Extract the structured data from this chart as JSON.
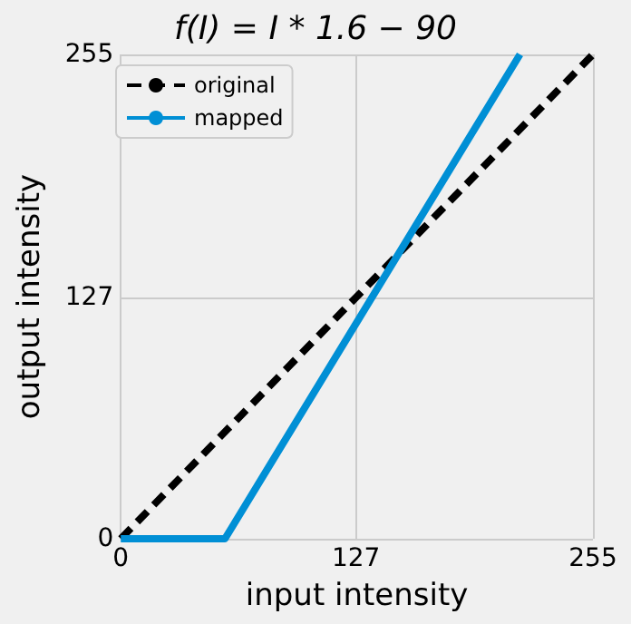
{
  "chart_data": {
    "type": "line",
    "title": "f(I) = I * 1.6 − 90",
    "xlabel": "input intensity",
    "ylabel": "output intensity",
    "xlim": [
      0,
      255
    ],
    "ylim": [
      0,
      255
    ],
    "xticks": [
      0,
      127,
      255
    ],
    "yticks": [
      0,
      127,
      255
    ],
    "grid": true,
    "legend": "top left",
    "marker": "none",
    "series": [
      {
        "name": "original",
        "color": "#000000",
        "line_style": "dashed",
        "x": [
          0,
          255
        ],
        "values": [
          0,
          255
        ]
      },
      {
        "name": "mapped",
        "color": "#008fd5",
        "line_style": "solid",
        "x": [
          0,
          56.25,
          215.6
        ],
        "values": [
          0,
          0,
          255
        ]
      }
    ]
  }
}
